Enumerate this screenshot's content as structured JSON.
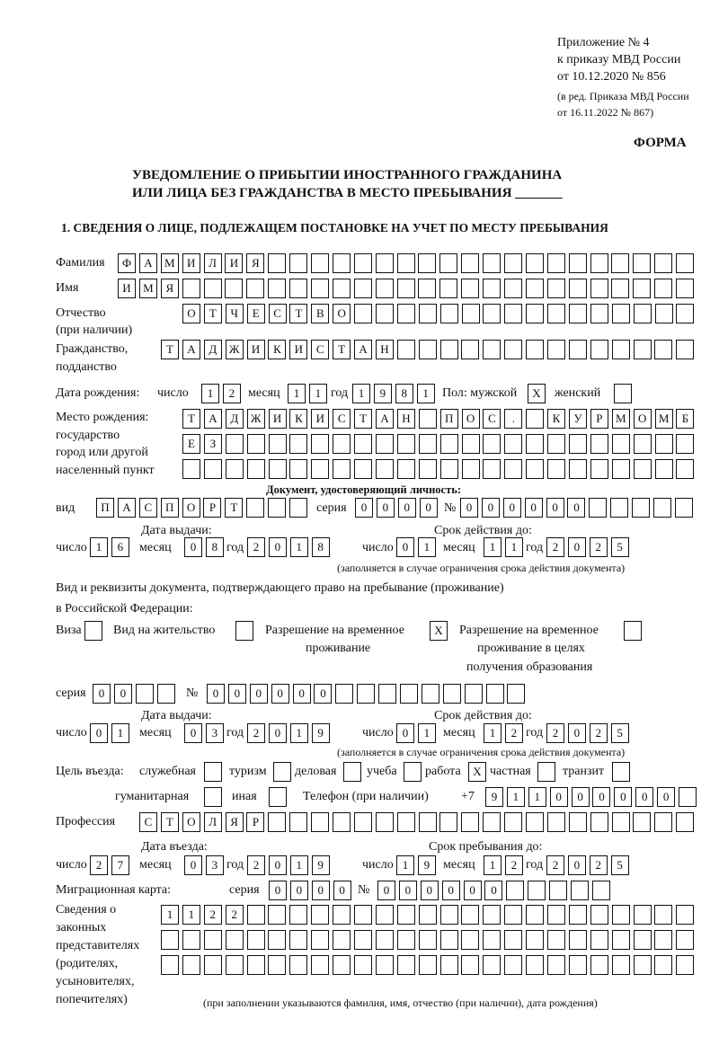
{
  "header": {
    "appendix": [
      "Приложение № 4",
      "к приказу МВД России",
      "от 10.12.2020 № 856"
    ],
    "revision": [
      "(в ред. Приказа МВД России",
      "от 16.11.2022 № 867)"
    ],
    "forma": "ФОРМА",
    "title_line1": "УВЕДОМЛЕНИЕ О ПРИБЫТИИ ИНОСТРАННОГО ГРАЖДАНИНА",
    "title_line2": "ИЛИ ЛИЦА БЕЗ ГРАЖДАНСТВА В МЕСТО ПРЕБЫВАНИЯ _______",
    "section1": "1. СВЕДЕНИЯ О ЛИЦЕ, ПОДЛЕЖАЩЕМ ПОСТАНОВКЕ НА УЧЕТ ПО МЕСТУ ПРЕБЫВАНИЯ"
  },
  "date_labels": {
    "day": "число",
    "month": "месяц",
    "year": "год"
  },
  "person": {
    "surname_label": "Фамилия",
    "surname": "ФАМИЛИЯ",
    "name_label": "Имя",
    "name": "ИМЯ",
    "patronymic_label": "Отчество",
    "patronymic_note": "(при наличии)",
    "patronymic": "ОТЧЕСТВО",
    "citizenship_label1": "Гражданство,",
    "citizenship_label2": "подданство",
    "citizenship": "ТАДЖИКИСТАН"
  },
  "birth": {
    "label": "Дата рождения:",
    "day": "12",
    "month": "11",
    "year": "1981",
    "sex_label": "Пол: мужской",
    "male": "X",
    "female_label": "женский",
    "female": ""
  },
  "birthplace": {
    "labels": [
      "Место рождения:",
      "государство",
      "город или другой",
      "населенный пункт"
    ],
    "rows": [
      "ТАДЖИКИСТАН ПОС. КУРМОМБ",
      "ЕЗ",
      ""
    ]
  },
  "id_doc": {
    "heading": "Документ, удостоверяющий личность:",
    "kind_label": "вид",
    "kind": "ПАСПОРТ",
    "series_label": "серия",
    "series": "0000",
    "number_label": "№",
    "number": "000000",
    "issue_label": "Дата выдачи:",
    "issue": {
      "day": "16",
      "month": "08",
      "year": "2018"
    },
    "valid_label": "Срок действия до:",
    "valid": {
      "day": "01",
      "month": "11",
      "year": "2025"
    },
    "note": "(заполняется в случае ограничения срока действия документа)"
  },
  "residence_doc": {
    "line1": "Вид и реквизиты документа, подтверждающего право на пребывание (проживание)",
    "line2": "в Российской Федерации:",
    "visa_label": "Виза",
    "visa": "",
    "vnzh_label": "Вид на жительство",
    "vnzh": "",
    "rvp_label": [
      "Разрешение на временное",
      "проживание"
    ],
    "rvp": "X",
    "rvpo_label": [
      "Разрешение на временное",
      "проживание в целях",
      "получения образования"
    ],
    "rvpo": "",
    "series_label": "серия",
    "series": "00",
    "number_label": "№",
    "number": "000000",
    "issue_label": "Дата выдачи:",
    "issue": {
      "day": "01",
      "month": "03",
      "year": "2019"
    },
    "valid_label": "Срок действия до:",
    "valid": {
      "day": "01",
      "month": "12",
      "year": "2025"
    },
    "note": "(заполняется в случае ограничения срока действия документа)"
  },
  "purpose": {
    "label": "Цель въезда:",
    "options": [
      {
        "label": "служебная",
        "value": ""
      },
      {
        "label": "туризм",
        "value": ""
      },
      {
        "label": "деловая",
        "value": ""
      },
      {
        "label": "учеба",
        "value": ""
      },
      {
        "label": "работа",
        "value": "X"
      },
      {
        "label": "частная",
        "value": ""
      },
      {
        "label": "транзит",
        "value": ""
      },
      {
        "label": "гуманитарная",
        "value": ""
      },
      {
        "label": "иная",
        "value": ""
      }
    ]
  },
  "phone": {
    "label": "Телефон (при наличии)",
    "prefix": "+7",
    "value": "911000000"
  },
  "profession": {
    "label": "Профессия",
    "value": "СТОЛЯР"
  },
  "entry": {
    "entry_label": "Дата въезда:",
    "entry": {
      "day": "27",
      "month": "03",
      "year": "2019"
    },
    "stay_label": "Срок пребывания до:",
    "stay": {
      "day": "19",
      "month": "12",
      "year": "2025"
    }
  },
  "migration_card": {
    "label": "Миграционная карта:",
    "series_label": "серия",
    "series": "0000",
    "number_label": "№",
    "number": "000000"
  },
  "representatives": {
    "labels": [
      "Сведения о",
      "законных",
      "представителях",
      "(родителях,",
      "усыновителях,",
      "попечителях)"
    ],
    "rows": [
      "1122",
      "",
      ""
    ],
    "note": "(при заполнении указываются фамилия, имя, отчество (при наличии), дата рождения)"
  }
}
